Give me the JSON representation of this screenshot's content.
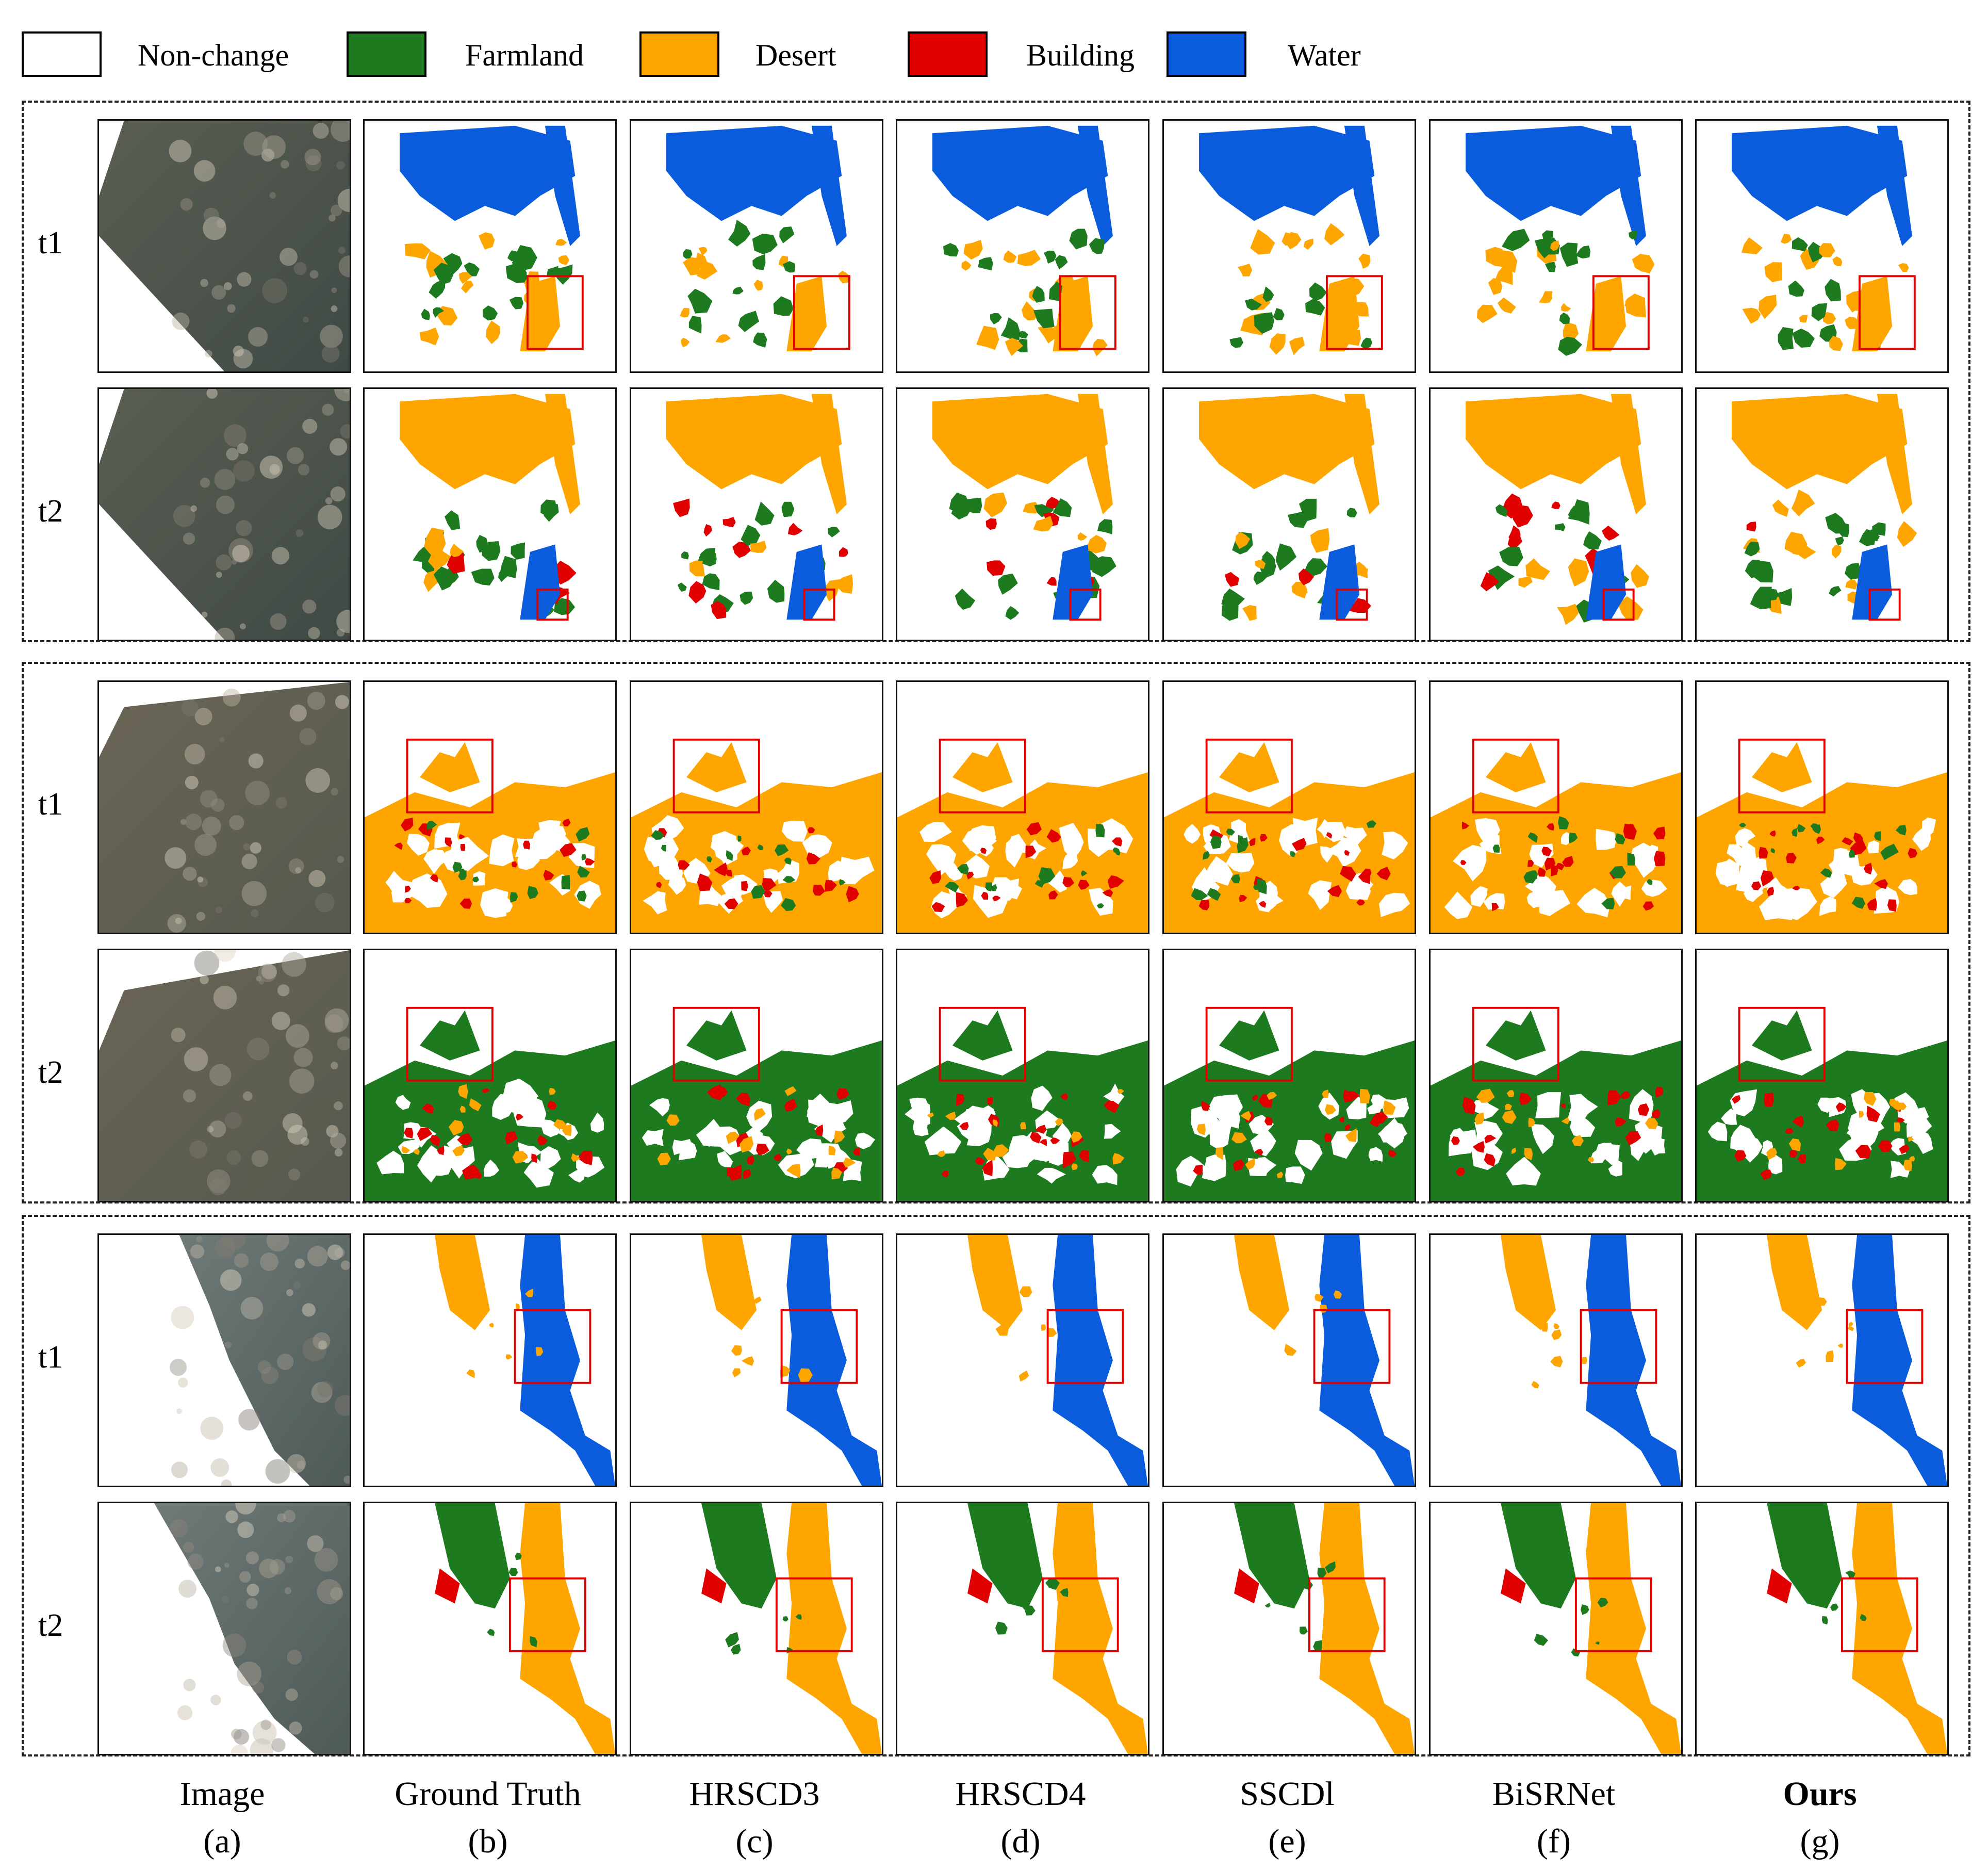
{
  "legend": [
    {
      "label": "Non-change",
      "color": "#ffffff"
    },
    {
      "label": "Farmland",
      "color": "#1e7a1e"
    },
    {
      "label": "Desert",
      "color": "#ffa500"
    },
    {
      "label": "Building",
      "color": "#e00000"
    },
    {
      "label": "Water",
      "color": "#0a5cdc"
    }
  ],
  "groups": [
    {
      "rows": [
        {
          "label": "t1"
        },
        {
          "label": "t2"
        }
      ]
    },
    {
      "rows": [
        {
          "label": "t1"
        },
        {
          "label": "t2"
        }
      ]
    },
    {
      "rows": [
        {
          "label": "t1"
        },
        {
          "label": "t2"
        }
      ]
    }
  ],
  "columns": [
    {
      "title": "Image",
      "letter": "(a)"
    },
    {
      "title": "Ground Truth",
      "letter": "(b)"
    },
    {
      "title": "HRSCD3",
      "letter": "(c)"
    },
    {
      "title": "HRSCD4",
      "letter": "(d)"
    },
    {
      "title": "SSCDl",
      "letter": "(e)"
    },
    {
      "title": "BiSRNet",
      "letter": "(f)"
    },
    {
      "title": "Ours",
      "letter": "(g)"
    }
  ],
  "colors": {
    "farmland": "#1e7a1e",
    "desert": "#ffa500",
    "building": "#e00000",
    "water": "#0a5cdc",
    "highlight_box": "#e00000"
  }
}
